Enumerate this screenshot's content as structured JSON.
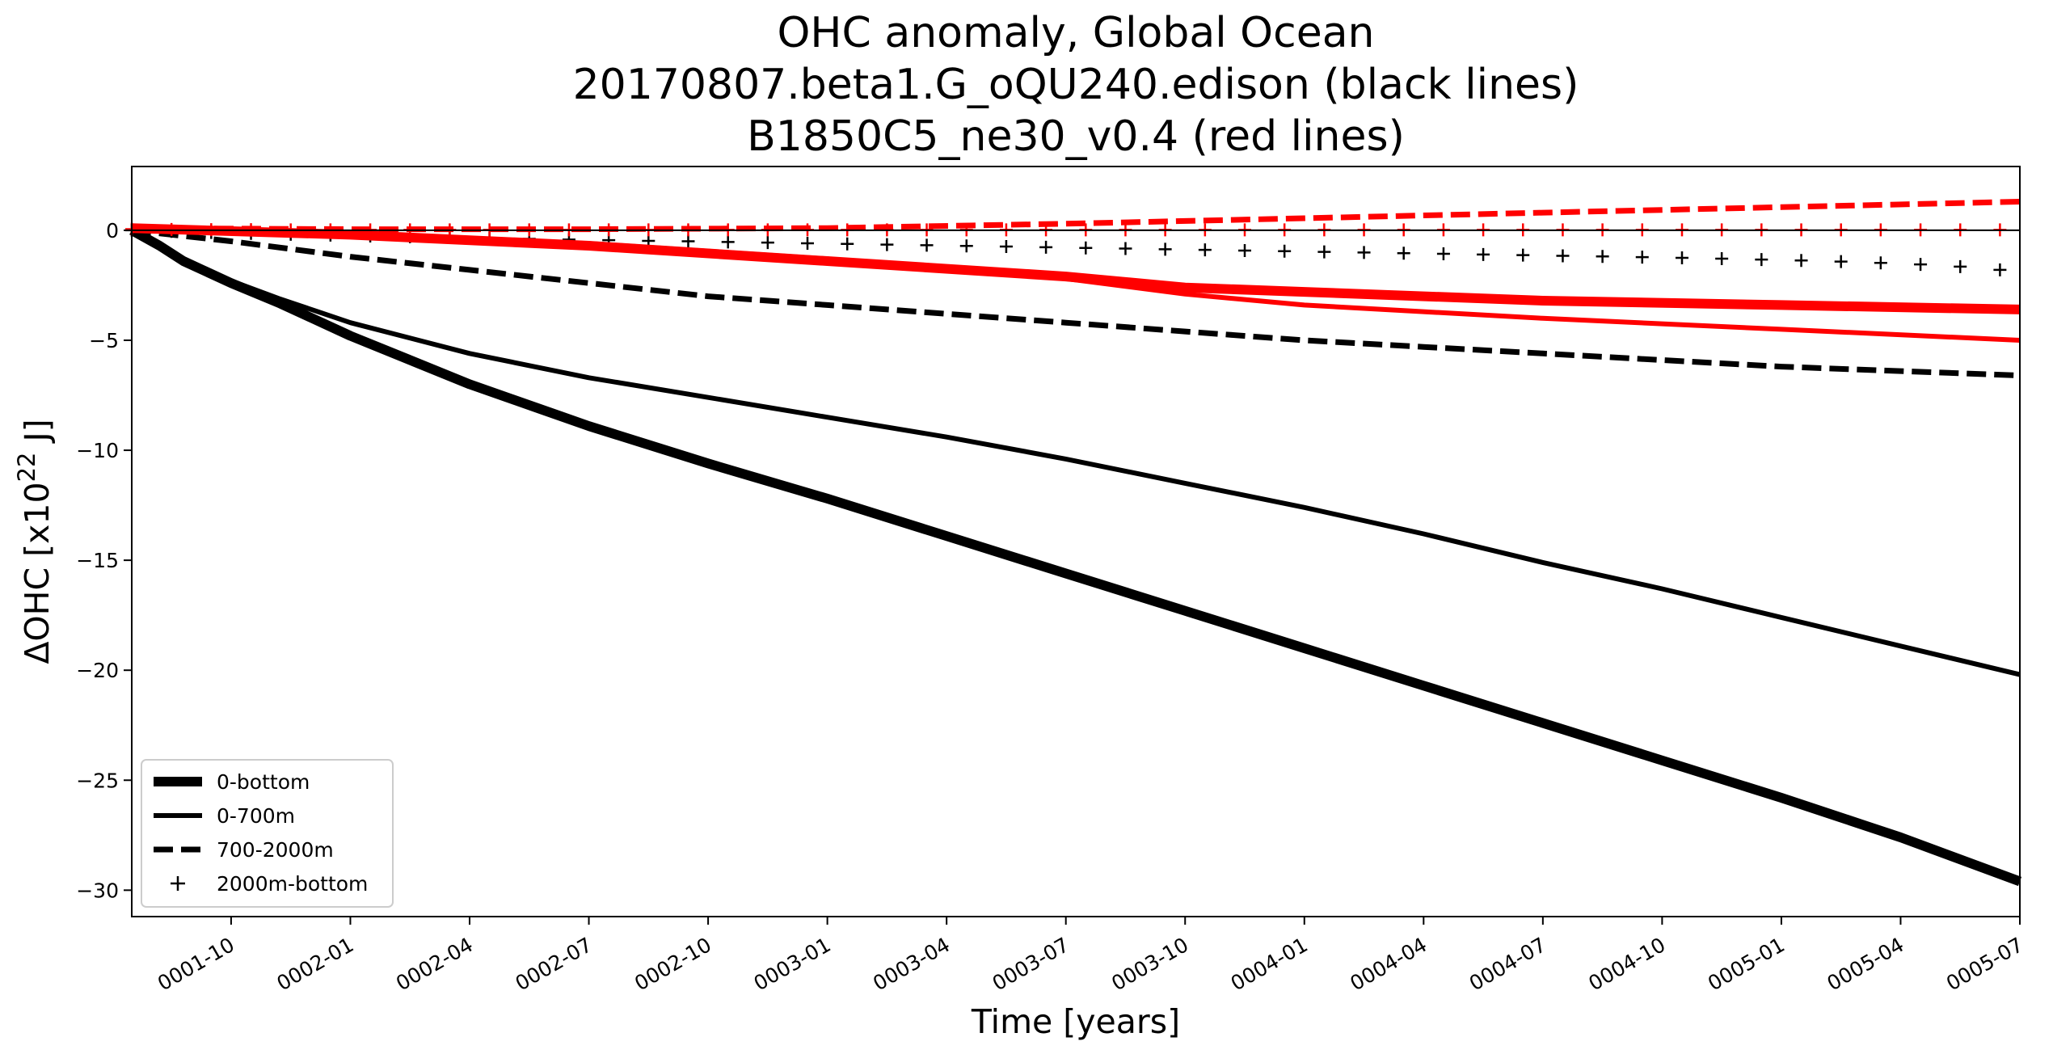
{
  "chart_data": {
    "type": "line",
    "title_lines": [
      "OHC anomaly, Global Ocean",
      "20170807.beta1.G_oQU240.edison (black lines)",
      "B1850C5_ne30_v0.4 (red lines)"
    ],
    "xlabel": "Time [years]",
    "ylabel_prefix": "ΔOHC  [x10",
    "ylabel_exp": "22",
    "ylabel_suffix": " J]",
    "x_ticks": [
      {
        "x": 0.75,
        "label": "0001-10"
      },
      {
        "x": 1.0,
        "label": "0002-01"
      },
      {
        "x": 1.25,
        "label": "0002-04"
      },
      {
        "x": 1.5,
        "label": "0002-07"
      },
      {
        "x": 1.75,
        "label": "0002-10"
      },
      {
        "x": 2.0,
        "label": "0003-01"
      },
      {
        "x": 2.25,
        "label": "0003-04"
      },
      {
        "x": 2.5,
        "label": "0003-07"
      },
      {
        "x": 2.75,
        "label": "0003-10"
      },
      {
        "x": 3.0,
        "label": "0004-01"
      },
      {
        "x": 3.25,
        "label": "0004-04"
      },
      {
        "x": 3.5,
        "label": "0004-07"
      },
      {
        "x": 3.75,
        "label": "0004-10"
      },
      {
        "x": 4.0,
        "label": "0005-01"
      },
      {
        "x": 4.25,
        "label": "0005-04"
      },
      {
        "x": 4.5,
        "label": "0005-07"
      }
    ],
    "y_ticks": [
      {
        "y": 0,
        "label": "0"
      },
      {
        "y": -5,
        "label": "−5"
      },
      {
        "y": -10,
        "label": "−10"
      },
      {
        "y": -15,
        "label": "−15"
      },
      {
        "y": -20,
        "label": "−20"
      },
      {
        "y": -25,
        "label": "−25"
      },
      {
        "y": -30,
        "label": "−30"
      }
    ],
    "xlim": [
      0.5417,
      4.5
    ],
    "ylim": [
      -31.2,
      2.9
    ],
    "zero_line": true,
    "legend_position": "lower-left",
    "legend": [
      {
        "label": "0-bottom",
        "style": "thick"
      },
      {
        "label": "0-700m",
        "style": "solid"
      },
      {
        "label": "700-2000m",
        "style": "dashed"
      },
      {
        "label": "2000m-bottom",
        "style": "marker-plus"
      }
    ],
    "series": [
      {
        "name": "0-bottom (black)",
        "color": "#000000",
        "style": "thick",
        "x": [
          0.5417,
          0.6,
          0.65,
          0.7,
          0.75,
          0.85,
          1.0,
          1.25,
          1.5,
          1.75,
          2.0,
          2.25,
          2.5,
          2.75,
          3.0,
          3.25,
          3.5,
          3.75,
          4.0,
          4.25,
          4.5
        ],
        "y": [
          0,
          -0.7,
          -1.4,
          -1.9,
          -2.4,
          -3.3,
          -4.8,
          -7.0,
          -8.9,
          -10.6,
          -12.2,
          -13.9,
          -15.6,
          -17.3,
          -19.0,
          -20.7,
          -22.4,
          -24.1,
          -25.8,
          -27.6,
          -29.6
        ]
      },
      {
        "name": "0-700m (black)",
        "color": "#000000",
        "style": "solid",
        "x": [
          0.5417,
          0.6,
          0.65,
          0.7,
          0.75,
          0.85,
          1.0,
          1.25,
          1.5,
          1.75,
          2.0,
          2.25,
          2.5,
          2.75,
          3.0,
          3.25,
          3.5,
          3.75,
          4.0,
          4.25,
          4.5
        ],
        "y": [
          0,
          -0.7,
          -1.4,
          -1.9,
          -2.3,
          -3.1,
          -4.2,
          -5.6,
          -6.7,
          -7.6,
          -8.5,
          -9.4,
          -10.4,
          -11.5,
          -12.6,
          -13.8,
          -15.1,
          -16.3,
          -17.6,
          -18.9,
          -20.2
        ]
      },
      {
        "name": "700-2000m (black)",
        "color": "#000000",
        "style": "dashed",
        "x": [
          0.5417,
          0.75,
          1.0,
          1.25,
          1.5,
          1.75,
          2.0,
          2.25,
          2.5,
          2.75,
          3.0,
          3.25,
          3.5,
          3.75,
          4.0,
          4.25,
          4.5
        ],
        "y": [
          0,
          -0.5,
          -1.2,
          -1.8,
          -2.4,
          -3.0,
          -3.4,
          -3.8,
          -4.2,
          -4.6,
          -5.0,
          -5.3,
          -5.6,
          -5.9,
          -6.2,
          -6.4,
          -6.6
        ]
      },
      {
        "name": "2000m-bottom (black)",
        "color": "#000000",
        "style": "marker-plus",
        "x": [
          0.5417,
          0.625,
          0.7083,
          0.7917,
          0.875,
          0.9583,
          1.0417,
          1.125,
          1.2083,
          1.2917,
          1.375,
          1.4583,
          1.5417,
          1.625,
          1.7083,
          1.7917,
          1.875,
          1.9583,
          2.0417,
          2.125,
          2.2083,
          2.2917,
          2.375,
          2.4583,
          2.5417,
          2.625,
          2.7083,
          2.7917,
          2.875,
          2.9583,
          3.0417,
          3.125,
          3.2083,
          3.2917,
          3.375,
          3.4583,
          3.5417,
          3.625,
          3.7083,
          3.7917,
          3.875,
          3.9583,
          4.0417,
          4.125,
          4.2083,
          4.2917,
          4.375,
          4.4583
        ],
        "y": [
          0,
          -0.05,
          -0.1,
          -0.14,
          -0.18,
          -0.22,
          -0.26,
          -0.29,
          -0.32,
          -0.36,
          -0.39,
          -0.42,
          -0.45,
          -0.48,
          -0.5,
          -0.53,
          -0.56,
          -0.59,
          -0.62,
          -0.65,
          -0.68,
          -0.71,
          -0.74,
          -0.77,
          -0.8,
          -0.83,
          -0.86,
          -0.89,
          -0.92,
          -0.95,
          -0.98,
          -1.01,
          -1.04,
          -1.07,
          -1.1,
          -1.13,
          -1.16,
          -1.19,
          -1.22,
          -1.25,
          -1.29,
          -1.33,
          -1.37,
          -1.42,
          -1.48,
          -1.55,
          -1.65,
          -1.8
        ]
      },
      {
        "name": "0-bottom (red)",
        "color": "#ff0000",
        "style": "thick",
        "x": [
          0.5417,
          1.0,
          1.5,
          2.0,
          2.5,
          2.75,
          3.0,
          3.5,
          4.0,
          4.5
        ],
        "y": [
          0.1,
          -0.2,
          -0.7,
          -1.4,
          -2.1,
          -2.6,
          -2.8,
          -3.2,
          -3.4,
          -3.6
        ]
      },
      {
        "name": "0-700m (red)",
        "color": "#ff0000",
        "style": "solid",
        "x": [
          0.5417,
          1.0,
          1.5,
          2.0,
          2.5,
          2.75,
          3.0,
          3.5,
          4.0,
          4.5
        ],
        "y": [
          0.1,
          -0.2,
          -0.6,
          -1.3,
          -2.2,
          -2.9,
          -3.4,
          -4.0,
          -4.5,
          -5.0
        ]
      },
      {
        "name": "700-2000m (red)",
        "color": "#ff0000",
        "style": "dashed",
        "x": [
          0.5417,
          1.0,
          1.5,
          2.0,
          2.5,
          3.0,
          3.5,
          4.0,
          4.5
        ],
        "y": [
          0.1,
          0.05,
          0.05,
          0.1,
          0.3,
          0.55,
          0.8,
          1.05,
          1.3
        ]
      },
      {
        "name": "2000m-bottom (red)",
        "color": "#ff0000",
        "style": "marker-plus",
        "x": [
          0.5417,
          0.625,
          0.7083,
          0.7917,
          0.875,
          0.9583,
          1.0417,
          1.125,
          1.2083,
          1.2917,
          1.375,
          1.4583,
          1.5417,
          1.625,
          1.7083,
          1.7917,
          1.875,
          1.9583,
          2.0417,
          2.125,
          2.2083,
          2.2917,
          2.375,
          2.4583,
          2.5417,
          2.625,
          2.7083,
          2.7917,
          2.875,
          2.9583,
          3.0417,
          3.125,
          3.2083,
          3.2917,
          3.375,
          3.4583,
          3.5417,
          3.625,
          3.7083,
          3.7917,
          3.875,
          3.9583,
          4.0417,
          4.125,
          4.2083,
          4.2917,
          4.375,
          4.4583
        ],
        "y": [
          0.05,
          0.04,
          0.03,
          0.03,
          0.02,
          0.02,
          0.02,
          0.02,
          0.02,
          0.02,
          0.02,
          0.02,
          0.02,
          0.02,
          0.02,
          0.02,
          0.02,
          0.02,
          0.02,
          0.02,
          0.02,
          0.02,
          0.02,
          0.02,
          0.02,
          0.02,
          0.02,
          0.02,
          0.02,
          0.02,
          0.02,
          0.02,
          0.02,
          0.02,
          0.02,
          0.02,
          0.02,
          0.02,
          0.02,
          0.02,
          0.02,
          0.02,
          0.02,
          0.02,
          0.02,
          0.02,
          0.02,
          0.02
        ]
      }
    ]
  }
}
